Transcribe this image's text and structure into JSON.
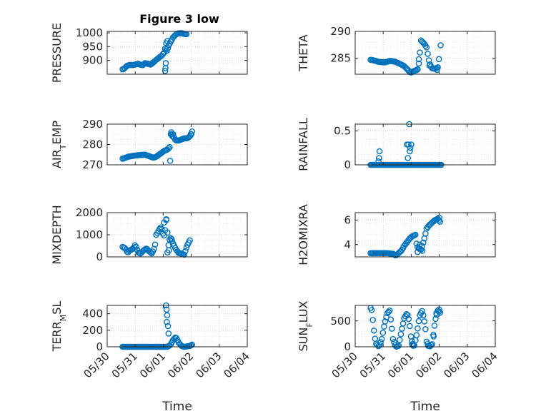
{
  "chart_data": [
    {
      "type": "scatter",
      "title": "Figure 3 low",
      "ylabel": "PRESSURE",
      "yticks": [
        900,
        950,
        1000
      ],
      "ylim": [
        850,
        1005
      ],
      "xlim": [
        "05/30",
        "06/04"
      ],
      "knots": [
        [
          0.0,
          868
        ],
        [
          0.06,
          870
        ],
        [
          0.15,
          880
        ],
        [
          0.25,
          884
        ],
        [
          0.35,
          883
        ],
        [
          0.45,
          885
        ],
        [
          0.55,
          888
        ],
        [
          0.65,
          884
        ],
        [
          0.72,
          883
        ],
        [
          0.8,
          890
        ],
        [
          0.9,
          888
        ],
        [
          1.0,
          885
        ],
        [
          1.1,
          893
        ],
        [
          1.2,
          902
        ],
        [
          1.3,
          910
        ],
        [
          1.4,
          918
        ],
        [
          1.48,
          928
        ],
        [
          1.5,
          932
        ],
        [
          1.55,
          960
        ],
        [
          1.6,
          970
        ],
        [
          1.65,
          952
        ],
        [
          1.7,
          965
        ],
        [
          1.8,
          983
        ],
        [
          1.9,
          994
        ],
        [
          2.0,
          998
        ],
        [
          2.1,
          999
        ],
        [
          2.2,
          996
        ],
        [
          2.3,
          995
        ]
      ],
      "extra_points": [
        [
          1.52,
          862
        ],
        [
          1.53,
          872
        ],
        [
          1.54,
          890
        ],
        [
          1.56,
          940
        ],
        [
          1.58,
          935
        ],
        [
          1.62,
          945
        ]
      ]
    },
    {
      "type": "scatter",
      "ylabel": "THETA",
      "yticks": [
        285,
        290
      ],
      "ylim": [
        282,
        290
      ],
      "xlim": [
        "05/30",
        "06/04"
      ],
      "knots": [
        [
          0.0,
          284.7
        ],
        [
          0.1,
          284.6
        ],
        [
          0.3,
          284.3
        ],
        [
          0.5,
          284.2
        ],
        [
          0.7,
          284.5
        ],
        [
          0.9,
          284.3
        ],
        [
          1.1,
          283.8
        ],
        [
          1.2,
          283.5
        ],
        [
          1.3,
          283.0
        ],
        [
          1.4,
          282.4
        ],
        [
          1.45,
          282.3
        ],
        [
          1.55,
          282.6
        ],
        [
          1.65,
          282.8
        ],
        [
          1.7,
          283.0
        ],
        [
          1.75,
          285.5
        ],
        [
          1.8,
          288.3
        ],
        [
          1.9,
          287.8
        ],
        [
          2.0,
          287.0
        ],
        [
          2.05,
          285.5
        ],
        [
          2.1,
          284.0
        ],
        [
          2.2,
          283.1
        ],
        [
          2.3,
          283.0
        ],
        [
          2.4,
          283.3
        ],
        [
          2.45,
          285.2
        ]
      ],
      "extra_points": [
        [
          1.72,
          284.8
        ],
        [
          2.1,
          283.6
        ],
        [
          2.5,
          287.4
        ],
        [
          2.37,
          282.8
        ]
      ]
    },
    {
      "type": "scatter",
      "ylabel": "AIR_TEMP",
      "yticks": [
        270,
        280,
        290
      ],
      "ylim": [
        270,
        290
      ],
      "xlim": [
        "05/30",
        "06/04"
      ],
      "knots": [
        [
          0.0,
          273
        ],
        [
          0.2,
          274
        ],
        [
          0.4,
          274.5
        ],
        [
          0.6,
          274.8
        ],
        [
          0.8,
          275
        ],
        [
          0.9,
          274.5
        ],
        [
          1.0,
          274
        ],
        [
          1.1,
          273.5
        ],
        [
          1.2,
          274
        ],
        [
          1.3,
          275
        ],
        [
          1.4,
          276
        ],
        [
          1.5,
          277
        ],
        [
          1.6,
          277.5
        ],
        [
          1.7,
          279
        ],
        [
          1.72,
          285
        ],
        [
          1.8,
          285
        ],
        [
          1.85,
          283
        ],
        [
          1.9,
          282
        ],
        [
          2.0,
          282
        ],
        [
          2.1,
          282.5
        ],
        [
          2.2,
          283
        ],
        [
          2.3,
          283
        ],
        [
          2.4,
          284
        ],
        [
          2.5,
          287
        ]
      ],
      "extra_points": [
        [
          1.7,
          272
        ],
        [
          1.74,
          286
        ],
        [
          1.78,
          284
        ],
        [
          2.45,
          285
        ]
      ]
    },
    {
      "type": "scatter",
      "ylabel": "RAINFALL",
      "yticks": [
        0,
        0.5
      ],
      "ylim": [
        0,
        0.6
      ],
      "xlim": [
        "05/30",
        "06/04"
      ],
      "knots": [
        [
          0.0,
          0
        ],
        [
          2.55,
          0
        ]
      ],
      "extra_points": [
        [
          0.28,
          0.05
        ],
        [
          0.3,
          0.1
        ],
        [
          0.32,
          0.2
        ],
        [
          1.3,
          0.3
        ],
        [
          1.35,
          0.3
        ],
        [
          1.38,
          0.6
        ],
        [
          1.4,
          0.2
        ],
        [
          1.42,
          0.25
        ],
        [
          1.45,
          0.3
        ],
        [
          1.33,
          0.1
        ]
      ]
    },
    {
      "type": "scatter",
      "ylabel": "MIXDEPTH",
      "yticks": [
        0,
        1000,
        2000
      ],
      "ylim": [
        0,
        2000
      ],
      "xlim": [
        "05/30",
        "06/04"
      ],
      "knots": [
        [
          0.0,
          450
        ],
        [
          0.1,
          380
        ],
        [
          0.18,
          180
        ],
        [
          0.25,
          300
        ],
        [
          0.32,
          330
        ],
        [
          0.4,
          420
        ],
        [
          0.45,
          550
        ],
        [
          0.5,
          400
        ],
        [
          0.55,
          200
        ],
        [
          0.65,
          150
        ],
        [
          0.75,
          300
        ],
        [
          0.85,
          380
        ],
        [
          0.95,
          250
        ],
        [
          1.05,
          150
        ],
        [
          1.15,
          450
        ],
        [
          1.2,
          1000
        ],
        [
          1.3,
          1200
        ],
        [
          1.35,
          1350
        ],
        [
          1.4,
          1250
        ],
        [
          1.45,
          1000
        ],
        [
          1.5,
          950
        ],
        [
          1.55,
          1600
        ],
        [
          1.58,
          1800
        ],
        [
          1.62,
          400
        ],
        [
          1.7,
          900
        ],
        [
          1.8,
          600
        ],
        [
          1.9,
          350
        ],
        [
          2.0,
          180
        ],
        [
          2.1,
          150
        ],
        [
          2.2,
          100
        ],
        [
          2.3,
          500
        ],
        [
          2.4,
          750
        ]
      ],
      "extra_points": [
        [
          1.48,
          1550
        ],
        [
          1.56,
          1700
        ],
        [
          1.6,
          200
        ],
        [
          1.65,
          300
        ],
        [
          1.75,
          800
        ]
      ]
    },
    {
      "type": "scatter",
      "ylabel": "H2OMIXRA",
      "yticks": [
        4,
        6
      ],
      "ylim": [
        3,
        6.6
      ],
      "xlim": [
        "05/30",
        "06/04"
      ],
      "knots": [
        [
          0.0,
          3.3
        ],
        [
          0.2,
          3.3
        ],
        [
          0.4,
          3.3
        ],
        [
          0.6,
          3.3
        ],
        [
          0.8,
          3.25
        ],
        [
          0.9,
          3.1
        ],
        [
          1.0,
          3.3
        ],
        [
          1.1,
          3.5
        ],
        [
          1.2,
          3.9
        ],
        [
          1.3,
          4.2
        ],
        [
          1.4,
          4.5
        ],
        [
          1.5,
          4.7
        ],
        [
          1.6,
          4.8
        ],
        [
          1.65,
          3.9
        ],
        [
          1.7,
          3.7
        ],
        [
          1.8,
          3.6
        ],
        [
          1.9,
          4.3
        ],
        [
          1.95,
          4.8
        ],
        [
          2.0,
          5.3
        ],
        [
          2.1,
          5.6
        ],
        [
          2.2,
          5.8
        ],
        [
          2.3,
          6.0
        ],
        [
          2.4,
          6.1
        ],
        [
          2.5,
          5.8
        ]
      ],
      "extra_points": [
        [
          1.68,
          3.4
        ],
        [
          1.75,
          4.0
        ],
        [
          1.85,
          3.5
        ],
        [
          2.45,
          6.2
        ]
      ]
    },
    {
      "type": "scatter",
      "ylabel": "TERR_MSL",
      "yticks": [
        0,
        200,
        400
      ],
      "ylim": [
        0,
        500
      ],
      "xlim": [
        "05/30",
        "06/04"
      ],
      "knots": [
        [
          0.0,
          0
        ],
        [
          1.6,
          0
        ],
        [
          1.7,
          20
        ],
        [
          1.8,
          80
        ],
        [
          1.9,
          120
        ],
        [
          2.0,
          50
        ],
        [
          2.1,
          10
        ],
        [
          2.2,
          0
        ],
        [
          2.4,
          10
        ],
        [
          2.5,
          30
        ]
      ],
      "extra_points": [
        [
          1.55,
          500
        ],
        [
          1.57,
          450
        ],
        [
          1.59,
          380
        ],
        [
          1.62,
          250
        ],
        [
          1.64,
          160
        ],
        [
          1.58,
          300
        ]
      ]
    },
    {
      "type": "scatter",
      "ylabel": "SUN_FLUX",
      "yticks": [
        0,
        500
      ],
      "ylim": [
        0,
        800
      ],
      "xlim": [
        "05/30",
        "06/04"
      ],
      "knots": [
        [
          0.0,
          750
        ],
        [
          0.05,
          700
        ],
        [
          0.1,
          400
        ],
        [
          0.15,
          180
        ],
        [
          0.2,
          60
        ],
        [
          0.3,
          0
        ],
        [
          0.4,
          150
        ],
        [
          0.5,
          450
        ],
        [
          0.6,
          650
        ],
        [
          0.68,
          700
        ],
        [
          0.75,
          400
        ],
        [
          0.8,
          150
        ],
        [
          0.9,
          0
        ],
        [
          1.0,
          20
        ],
        [
          1.1,
          300
        ],
        [
          1.2,
          550
        ],
        [
          1.3,
          650
        ],
        [
          1.38,
          500
        ],
        [
          1.45,
          150
        ],
        [
          1.55,
          0
        ],
        [
          1.65,
          250
        ],
        [
          1.75,
          600
        ],
        [
          1.85,
          700
        ],
        [
          1.95,
          400
        ],
        [
          2.0,
          100
        ],
        [
          2.1,
          0
        ],
        [
          2.2,
          50
        ],
        [
          2.3,
          500
        ],
        [
          2.4,
          700
        ],
        [
          2.5,
          650
        ]
      ],
      "extra_points": [
        [
          1.48,
          50
        ],
        [
          1.52,
          20
        ],
        [
          2.05,
          20
        ],
        [
          2.25,
          200
        ],
        [
          2.35,
          650
        ],
        [
          2.45,
          720
        ]
      ]
    }
  ],
  "common": {
    "xticks": [
      "05/30",
      "05/31",
      "06/01",
      "06/02",
      "06/03",
      "06/04"
    ],
    "xlabel": "Time",
    "color": "#0072bd",
    "axis_color": "#262626",
    "grid_color": "#d6d6d6"
  }
}
